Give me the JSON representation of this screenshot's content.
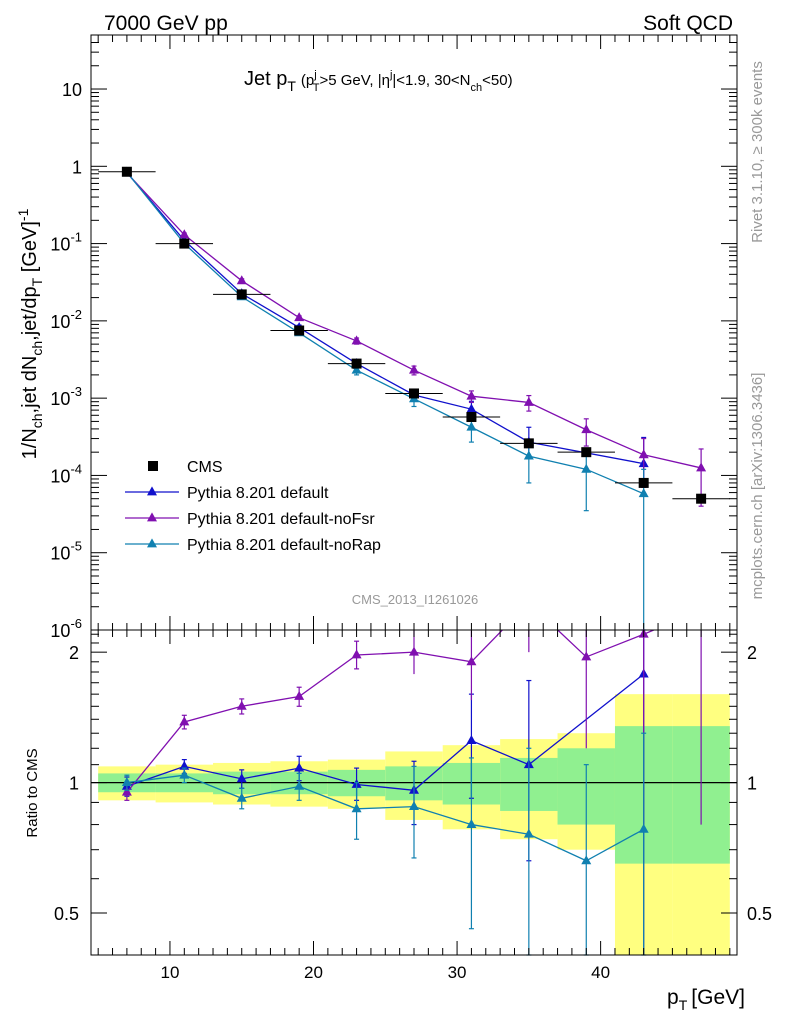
{
  "header": {
    "left": "7000 GeV pp",
    "right": "Soft QCD"
  },
  "side": {
    "rivet": "Rivet 3.1.10, ≥ 300k events",
    "mcplots": "mcplots.cern.ch [arXiv:1306.3436]"
  },
  "chart_data": {
    "type": "line",
    "title": {
      "main": "Jet p",
      "main_sub": "T",
      "cond_a": "(p",
      "cond_a_sub": "T",
      "cond_a_sup": "j",
      "cond_b": ">5 GeV, |η",
      "cond_b_sup": "j",
      "cond_c": "|<1.9, 30<N",
      "cond_c_sub": "ch",
      "cond_d": "<50)"
    },
    "analysis_id": "CMS_2013_I1261026",
    "xlabel": "p",
    "xlabel_sub": "T",
    "xlabel_unit": "[GeV]",
    "ylabel": {
      "a": "1/N",
      "a_sub": "ch",
      "b": ",jet dN",
      "b_sub": "ch",
      "c": ",jet/dp",
      "c_sub": "T",
      "d": " [GeV]",
      "d_sup": "-1"
    },
    "ratio_ylabel": "Ratio to CMS",
    "xlim": [
      4.5,
      49.5
    ],
    "ylim": [
      1e-06,
      50
    ],
    "yscale": "log",
    "ratio_ylim": [
      0.4,
      2.25
    ],
    "ratio_yscale": "log",
    "x_ticks": [
      10,
      20,
      30,
      40
    ],
    "y_ticks": [
      {
        "value": 10,
        "label": "10"
      },
      {
        "value": 1,
        "label": "1"
      },
      {
        "value": 0.1,
        "base": "10",
        "exp": "-1"
      },
      {
        "value": 0.01,
        "base": "10",
        "exp": "-2"
      },
      {
        "value": 0.001,
        "base": "10",
        "exp": "-3"
      },
      {
        "value": 0.0001,
        "base": "10",
        "exp": "-4"
      },
      {
        "value": 1e-05,
        "base": "10",
        "exp": "-5"
      },
      {
        "value": 1e-06,
        "base": "10",
        "exp": "-6"
      }
    ],
    "ratio_ticks": [
      {
        "value": 2,
        "label": "2"
      },
      {
        "value": 1,
        "label": "1"
      },
      {
        "value": 0.5,
        "label": "0.5"
      }
    ],
    "legend_position": "lower-left",
    "data": {
      "name": "CMS",
      "color": "#000000",
      "x": [
        7,
        11,
        15,
        19,
        23,
        27,
        31,
        35,
        39,
        43,
        47
      ],
      "xerr": [
        2,
        2,
        2,
        2,
        2,
        2,
        2,
        2,
        2,
        2,
        2
      ],
      "y": [
        0.85,
        0.1,
        0.022,
        0.0075,
        0.0028,
        0.00115,
        0.00057,
        0.00026,
        0.0002,
        8e-05,
        5e-05
      ],
      "band_stat": [
        0.05,
        0.05,
        0.06,
        0.06,
        0.07,
        0.09,
        0.11,
        0.14,
        0.2,
        0.35,
        0.35
      ],
      "band_total": [
        0.09,
        0.1,
        0.11,
        0.12,
        0.13,
        0.18,
        0.22,
        0.26,
        0.3,
        0.6,
        0.6
      ]
    },
    "series": [
      {
        "name": "Pythia 8.201 default",
        "color": "#1010cc",
        "x": [
          7,
          11,
          15,
          19,
          23,
          27,
          31,
          35,
          43
        ],
        "y": [
          0.83,
          0.11,
          0.0225,
          0.0082,
          0.0028,
          0.0011,
          0.00072,
          0.00027,
          0.000142
        ],
        "ylo": [
          0.78,
          0.1,
          0.021,
          0.0076,
          0.0025,
          0.00092,
          0.00053,
          0.00017,
          8.4e-05
        ],
        "yhi": [
          0.88,
          0.12,
          0.024,
          0.0088,
          0.0031,
          0.0013,
          0.00091,
          0.00042,
          0.00031
        ],
        "ratio": [
          0.98,
          1.09,
          1.02,
          1.08,
          0.99,
          0.96,
          1.25,
          1.1,
          1.78
        ],
        "ratio_lo": [
          0.93,
          1.05,
          0.97,
          1.01,
          0.91,
          0.8,
          0.92,
          0.66,
          0.3
        ],
        "ratio_hi": [
          1.03,
          1.13,
          1.07,
          1.15,
          1.08,
          1.12,
          1.6,
          1.72,
          2.25
        ]
      },
      {
        "name": "Pythia 8.201 default-noFsr",
        "color": "#8010b0",
        "x": [
          7,
          11,
          15,
          19,
          23,
          27,
          31,
          35,
          39,
          43,
          47
        ],
        "y": [
          0.82,
          0.13,
          0.033,
          0.011,
          0.0055,
          0.0023,
          0.00106,
          0.00088,
          0.00039,
          0.000185,
          0.000125
        ],
        "ylo": [
          0.78,
          0.123,
          0.031,
          0.0104,
          0.005,
          0.002,
          0.00088,
          0.00068,
          0.00024,
          7e-05,
          4e-05
        ],
        "yhi": [
          0.86,
          0.137,
          0.035,
          0.0116,
          0.006,
          0.0026,
          0.00124,
          0.00108,
          0.00054,
          0.0003,
          0.00022
        ],
        "ratio": [
          0.95,
          1.38,
          1.5,
          1.58,
          1.97,
          2.0,
          1.9,
          2.6,
          1.95,
          2.2,
          2.5
        ],
        "ratio_lo": [
          0.91,
          1.33,
          1.44,
          1.5,
          1.83,
          1.78,
          1.55,
          2.0,
          1.2,
          0.8,
          0.8
        ],
        "ratio_hi": [
          0.99,
          1.43,
          1.56,
          1.66,
          2.12,
          2.25,
          2.25,
          3.0,
          2.6,
          2.6,
          3.0
        ]
      },
      {
        "name": "Pythia 8.201 default-noRap",
        "color": "#1080b0",
        "x": [
          7,
          11,
          15,
          19,
          23,
          27,
          31,
          35,
          39,
          43
        ],
        "y": [
          0.84,
          0.1,
          0.0205,
          0.007,
          0.0023,
          0.00098,
          0.00042,
          0.000178,
          0.00012,
          5.8e-05
        ],
        "ylo": [
          0.8,
          0.094,
          0.019,
          0.0065,
          0.002,
          0.00078,
          0.00027,
          8e-05,
          3.5e-05,
          5e-07
        ],
        "yhi": [
          0.88,
          0.106,
          0.022,
          0.0075,
          0.0026,
          0.00118,
          0.00057,
          0.00028,
          0.0002,
          0.00012
        ],
        "ratio": [
          1.0,
          1.04,
          0.92,
          0.98,
          0.87,
          0.88,
          0.8,
          0.76,
          0.66,
          0.78
        ],
        "ratio_lo": [
          0.96,
          1.0,
          0.87,
          0.91,
          0.74,
          0.67,
          0.46,
          0.3,
          0.3,
          0.3
        ],
        "ratio_hi": [
          1.04,
          1.08,
          0.97,
          1.05,
          1.0,
          1.09,
          1.14,
          1.2,
          1.1,
          1.3
        ]
      }
    ]
  }
}
